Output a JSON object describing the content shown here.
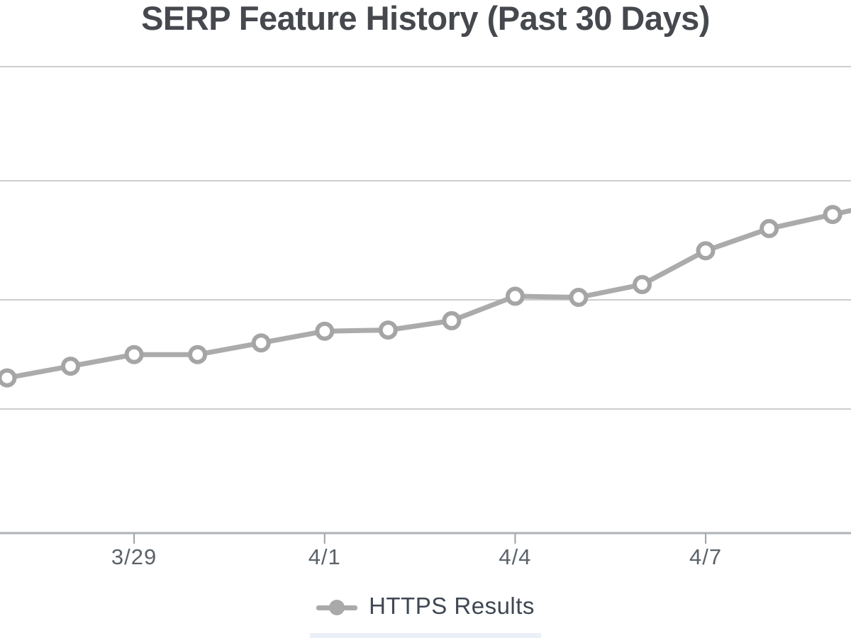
{
  "chart": {
    "title": "SERP Feature History (Past 30 Days)",
    "title_color": "#45484d",
    "line_color": "#ababab",
    "marker_stroke": "#a5a5a5",
    "marker_fill": "#ffffff",
    "grid_color": "#cdcdcd",
    "axis_color": "#aeb2b7",
    "tick_color": "#9ba1a7",
    "tick_label_color": "#5b6269",
    "legend": {
      "label": "HTTPS Results",
      "text_color": "#3f4753",
      "marker_color": "#a9a9a9"
    }
  },
  "chart_data": {
    "type": "line",
    "title": "SERP Feature History (Past 30 Days)",
    "x": [
      "3/27",
      "3/28",
      "3/29",
      "3/30",
      "3/31",
      "4/1",
      "4/2",
      "4/3",
      "4/4",
      "4/5",
      "4/6",
      "4/7",
      "4/8",
      "4/9"
    ],
    "series": [
      {
        "name": "HTTPS Results",
        "values": [
          1.33,
          1.43,
          1.53,
          1.53,
          1.63,
          1.73,
          1.74,
          1.82,
          2.03,
          2.02,
          2.13,
          2.42,
          2.61,
          2.73
        ]
      }
    ],
    "x_tick_labels": [
      "3/29",
      "4/1",
      "4/4",
      "4/7"
    ],
    "x_tick_indices": [
      2,
      5,
      8,
      11
    ],
    "y_axis": {
      "labels_visible": false,
      "unit": "gridline-units (y-axis labels cropped out of view)",
      "ylim": [
        0,
        4.0
      ],
      "gridline_values": [
        1.06,
        2.0,
        3.02,
        4.0
      ]
    },
    "grid": true,
    "legend_position": "bottom",
    "xlabel": "",
    "ylabel": ""
  }
}
